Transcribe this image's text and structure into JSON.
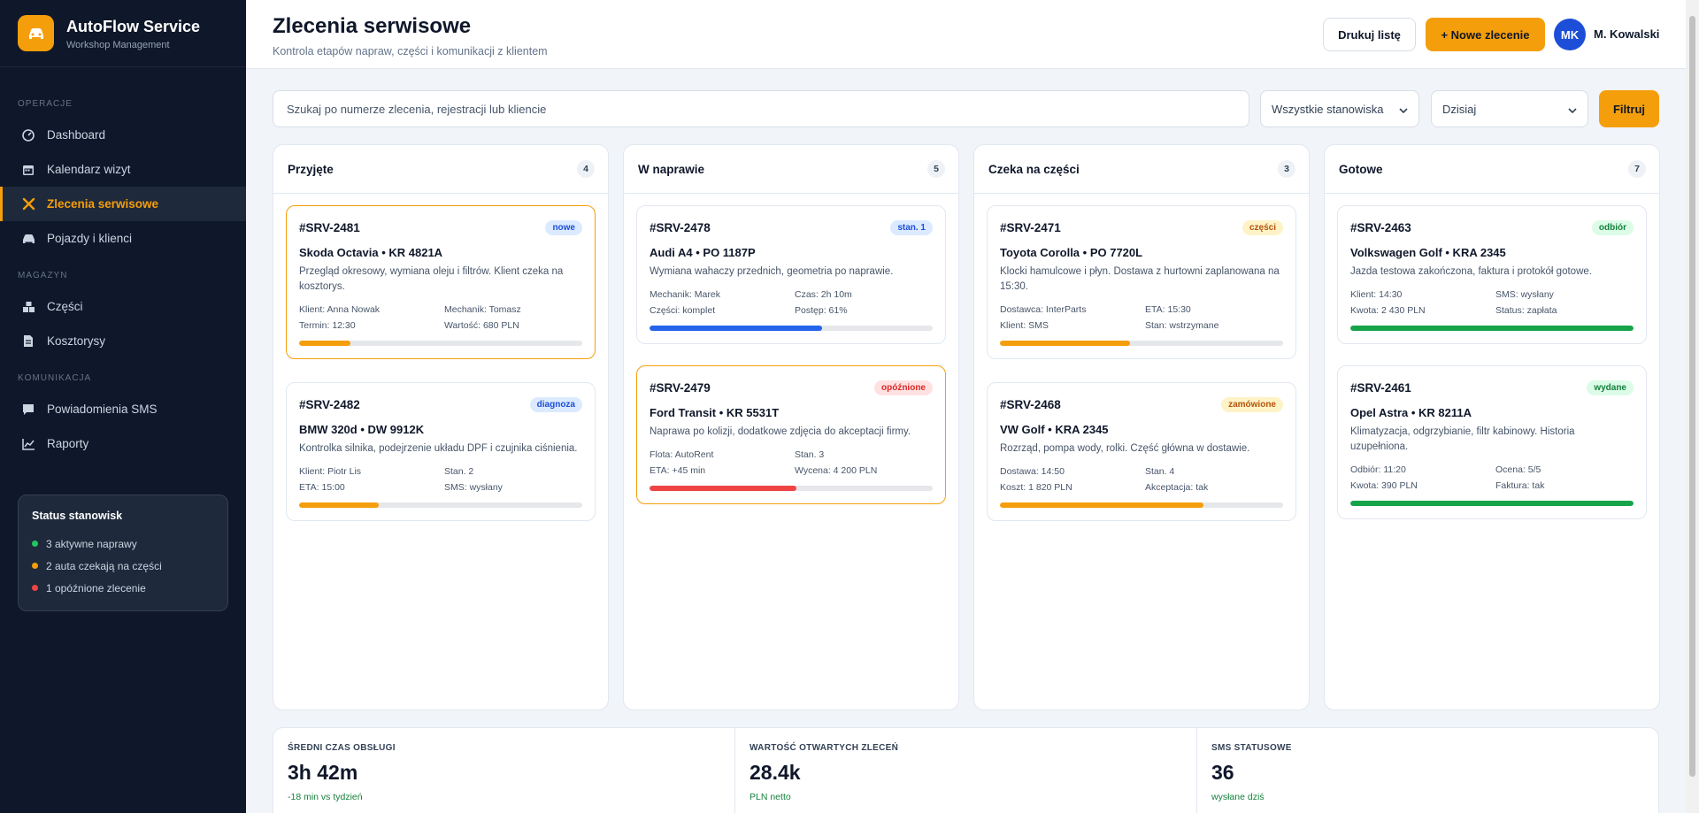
{
  "brand": {
    "title": "AutoFlow Service",
    "subtitle": "Workshop Management",
    "logo_icon": "car-icon"
  },
  "sidebar": {
    "sections": [
      {
        "label": "OPERACJE",
        "items": [
          {
            "label": "Dashboard",
            "icon": "dashboard-icon"
          },
          {
            "label": "Kalendarz wizyt",
            "icon": "calendar-icon"
          },
          {
            "label": "Zlecenia serwisowe",
            "icon": "tools-icon",
            "active": true
          },
          {
            "label": "Pojazdy i klienci",
            "icon": "car-icon"
          }
        ]
      },
      {
        "label": "MAGAZYN",
        "items": [
          {
            "label": "Części",
            "icon": "parts-icon"
          },
          {
            "label": "Kosztorysy",
            "icon": "document-icon"
          }
        ]
      },
      {
        "label": "KOMUNIKACJA",
        "items": [
          {
            "label": "Powiadomienia SMS",
            "icon": "message-icon"
          },
          {
            "label": "Raporty",
            "icon": "chart-icon"
          }
        ]
      }
    ],
    "status": {
      "title": "Status stanowisk",
      "lines": [
        {
          "text": "3 aktywne naprawy",
          "color": "#22c55e"
        },
        {
          "text": "2 auta czekają na części",
          "color": "#f59e0b"
        },
        {
          "text": "1 opóźnione zlecenie",
          "color": "#ef4444"
        }
      ]
    }
  },
  "header": {
    "title": "Zlecenia serwisowe",
    "subtitle": "Kontrola etapów napraw, części i komunikacji z klientem",
    "print_label": "Drukuj listę",
    "new_label": "+ Nowe zlecenie",
    "avatar_initials": "MK",
    "user_name": "M. Kowalski"
  },
  "filters": {
    "search_placeholder": "Szukaj po numerze zlecenia, rejestracji lub kliencie",
    "station_value": "Wszystkie stanowiska",
    "date_value": "Dzisiaj",
    "filter_label": "Filtruj"
  },
  "columns": [
    {
      "title": "Przyjęte",
      "count": "4",
      "cards": [
        {
          "id": "#SRV-2481",
          "badge": "nowe",
          "badge_bg": "#dbeafe",
          "badge_fg": "#1d4ed8",
          "highlight": true,
          "car": "Skoda Octavia • KR 4821A",
          "desc": "Przegląd okresowy, wymiana oleju i filtrów. Klient czeka na kosztorys.",
          "meta": [
            "Klient: Anna Nowak",
            "Mechanik: Tomasz",
            "Termin: 12:30",
            "Wartość: 680 PLN"
          ],
          "progress": 0.18,
          "progress_color": "#f59e0b"
        },
        {
          "id": "#SRV-2482",
          "badge": "diagnoza",
          "badge_bg": "#dbeafe",
          "badge_fg": "#1d4ed8",
          "highlight": false,
          "car": "BMW 320d • DW 9912K",
          "desc": "Kontrolka silnika, podejrzenie układu DPF i czujnika ciśnienia.",
          "meta": [
            "Klient: Piotr Lis",
            "Stan. 2",
            "ETA: 15:00",
            "SMS: wysłany"
          ],
          "progress": 0.28,
          "progress_color": "#f59e0b"
        }
      ]
    },
    {
      "title": "W naprawie",
      "count": "5",
      "cards": [
        {
          "id": "#SRV-2478",
          "badge": "stan. 1",
          "badge_bg": "#dbeafe",
          "badge_fg": "#1d4ed8",
          "highlight": false,
          "car": "Audi A4 • PO 1187P",
          "desc": "Wymiana wahaczy przednich, geometria po naprawie.",
          "meta": [
            "Mechanik: Marek",
            "Czas: 2h 10m",
            "Części: komplet",
            "Postęp: 61%"
          ],
          "progress": 0.61,
          "progress_color": "#2563eb"
        },
        {
          "id": "#SRV-2479",
          "badge": "opóźnione",
          "badge_bg": "#fee2e2",
          "badge_fg": "#dc2626",
          "highlight": true,
          "car": "Ford Transit • KR 5531T",
          "desc": "Naprawa po kolizji, dodatkowe zdjęcia do akceptacji firmy.",
          "meta": [
            "Flota: AutoRent",
            "Stan. 3",
            "ETA: +45 min",
            "Wycena: 4 200 PLN"
          ],
          "progress": 0.52,
          "progress_color": "#ef4444"
        }
      ]
    },
    {
      "title": "Czeka na części",
      "count": "3",
      "cards": [
        {
          "id": "#SRV-2471",
          "badge": "części",
          "badge_bg": "#fef3c7",
          "badge_fg": "#b45309",
          "highlight": false,
          "car": "Toyota Corolla • PO 7720L",
          "desc": "Klocki hamulcowe i płyn. Dostawa z hurtowni zaplanowana na 15:30.",
          "meta": [
            "Dostawca: InterParts",
            "ETA: 15:30",
            "Klient: SMS",
            "Stan: wstrzymane"
          ],
          "progress": 0.46,
          "progress_color": "#f59e0b"
        },
        {
          "id": "#SRV-2468",
          "badge": "zamówione",
          "badge_bg": "#fef3c7",
          "badge_fg": "#b45309",
          "highlight": false,
          "car": "VW Golf • KRA 2345",
          "desc": "Rozrząd, pompa wody, rolki. Część główna w dostawie.",
          "meta": [
            "Dostawa: 14:50",
            "Stan. 4",
            "Koszt: 1 820 PLN",
            "Akceptacja: tak"
          ],
          "progress": 0.72,
          "progress_color": "#f59e0b"
        }
      ]
    },
    {
      "title": "Gotowe",
      "count": "7",
      "cards": [
        {
          "id": "#SRV-2463",
          "badge": "odbiór",
          "badge_bg": "#dcfce7",
          "badge_fg": "#15803d",
          "highlight": false,
          "car": "Volkswagen Golf • KRA 2345",
          "desc": "Jazda testowa zakończona, faktura i protokół gotowe.",
          "meta": [
            "Klient: 14:30",
            "SMS: wysłany",
            "Kwota: 2 430 PLN",
            "Status: zapłata"
          ],
          "progress": 1.0,
          "progress_color": "#16a34a"
        },
        {
          "id": "#SRV-2461",
          "badge": "wydane",
          "badge_bg": "#dcfce7",
          "badge_fg": "#15803d",
          "highlight": false,
          "car": "Opel Astra • KR 8211A",
          "desc": "Klimatyzacja, odgrzybianie, filtr kabinowy. Historia uzupełniona.",
          "meta": [
            "Odbiór: 11:20",
            "Ocena: 5/5",
            "Kwota: 390 PLN",
            "Faktura: tak"
          ],
          "progress": 1.0,
          "progress_color": "#16a34a"
        }
      ]
    }
  ],
  "stats": [
    {
      "label": "ŚREDNI CZAS OBSŁUGI",
      "value": "3h 42m",
      "note": "-18 min vs tydzień",
      "note_color": "#15803d"
    },
    {
      "label": "WARTOŚĆ OTWARTYCH ZLECEŃ",
      "value": "28.4k",
      "note": "PLN netto",
      "note_color": "#15803d"
    },
    {
      "label": "SMS STATUSOWE",
      "value": "36",
      "note": "wysłane dziś",
      "note_color": "#15803d"
    }
  ]
}
